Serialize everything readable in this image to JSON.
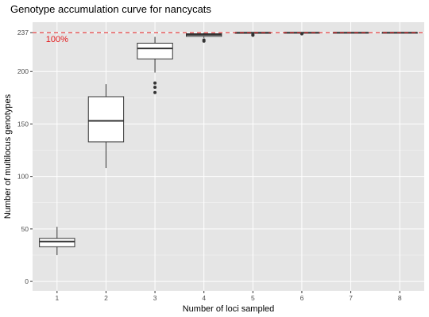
{
  "chart_data": {
    "type": "boxplot",
    "title": "Genotype accumulation curve for nancycats",
    "xlabel": "Number of loci sampled",
    "ylabel": "Number of multilocus genotypes",
    "categories": [
      "1",
      "2",
      "3",
      "4",
      "5",
      "6",
      "7",
      "8"
    ],
    "y_ticks": [
      0,
      50,
      100,
      150,
      200,
      237
    ],
    "y_tick_labels": [
      "0",
      "50",
      "100",
      "150",
      "200",
      "237"
    ],
    "ylim": [
      -9,
      247
    ],
    "grid": true,
    "legend": "none",
    "reference_line": {
      "value": 237,
      "label": "100%",
      "color": "#e41a1c",
      "style": "dashed"
    },
    "boxes": [
      {
        "category": "1",
        "whisker_low": 25,
        "q1": 33,
        "median": 38,
        "q3": 41,
        "whisker_high": 52,
        "outliers": []
      },
      {
        "category": "2",
        "whisker_low": 108,
        "q1": 133,
        "median": 153,
        "q3": 176,
        "whisker_high": 188,
        "outliers": []
      },
      {
        "category": "3",
        "whisker_low": 199,
        "q1": 212,
        "median": 222,
        "q3": 227,
        "whisker_high": 233,
        "outliers": [
          189,
          185,
          180
        ]
      },
      {
        "category": "4",
        "whisker_low": 232,
        "q1": 233.5,
        "median": 235,
        "q3": 236,
        "whisker_high": 237,
        "outliers": [
          230,
          229
        ]
      },
      {
        "category": "5",
        "whisker_low": 236,
        "q1": 236.4,
        "median": 237,
        "q3": 237,
        "whisker_high": 237,
        "outliers": [
          235,
          234.5
        ]
      },
      {
        "category": "6",
        "whisker_low": 237,
        "q1": 237,
        "median": 237,
        "q3": 237,
        "whisker_high": 237,
        "outliers": [
          236
        ]
      },
      {
        "category": "7",
        "whisker_low": 237,
        "q1": 237,
        "median": 237,
        "q3": 237,
        "whisker_high": 237,
        "outliers": []
      },
      {
        "category": "8",
        "whisker_low": 237,
        "q1": 237,
        "median": 237,
        "q3": 237,
        "whisker_high": 237,
        "outliers": []
      }
    ],
    "colors": {
      "panel_background": "#e5e5e5",
      "grid": "#ffffff",
      "box_fill": "#ffffff",
      "box_stroke": "#333333",
      "outlier": "#333333",
      "reference": "#e41a1c"
    }
  }
}
